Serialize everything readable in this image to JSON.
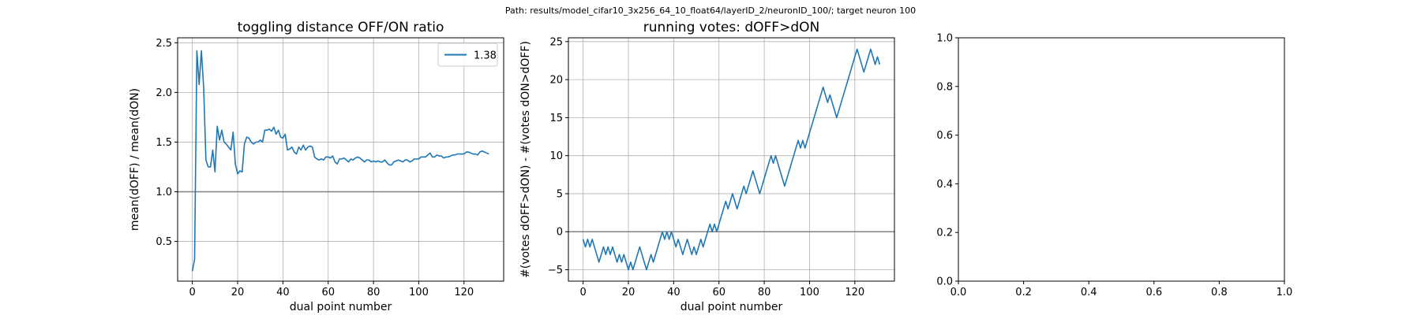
{
  "suptitle": "Path: results/model_cifar10_3x256_64_10_float64/layerID_2/neuronID_100/; target neuron 100",
  "chart_data": [
    {
      "type": "line",
      "title": "toggling distance OFF/ON ratio",
      "xlabel": "dual point number",
      "ylabel": "mean(dOFF) / mean(dON)",
      "xlim": [
        -6.5,
        137.5
      ],
      "ylim": [
        0.1,
        2.55
      ],
      "xticks": [
        0,
        20,
        40,
        60,
        80,
        100,
        120
      ],
      "yticks": [
        0.5,
        1.0,
        1.5,
        2.0,
        2.5
      ],
      "ytick_labels": [
        "0.5",
        "1.0",
        "1.5",
        "2.0",
        "2.5"
      ],
      "grid": true,
      "hline": 1.0,
      "legend": {
        "position": "top-right",
        "entries": [
          "1.38"
        ]
      },
      "series": [
        {
          "name": "1.38",
          "color": "#1f77b4",
          "x": [
            0,
            1,
            2,
            3,
            4,
            5,
            6,
            7,
            8,
            9,
            10,
            11,
            12,
            13,
            14,
            15,
            16,
            17,
            18,
            19,
            20,
            21,
            22,
            23,
            24,
            25,
            26,
            27,
            28,
            29,
            30,
            31,
            32,
            33,
            34,
            35,
            36,
            37,
            38,
            39,
            40,
            41,
            42,
            43,
            44,
            45,
            46,
            47,
            48,
            49,
            50,
            51,
            52,
            53,
            54,
            55,
            56,
            57,
            58,
            59,
            60,
            61,
            62,
            63,
            64,
            65,
            66,
            67,
            68,
            69,
            70,
            71,
            72,
            73,
            74,
            75,
            76,
            77,
            78,
            79,
            80,
            81,
            82,
            83,
            84,
            85,
            86,
            87,
            88,
            89,
            90,
            91,
            92,
            93,
            94,
            95,
            96,
            97,
            98,
            99,
            100,
            101,
            102,
            103,
            104,
            105,
            106,
            107,
            108,
            109,
            110,
            111,
            112,
            113,
            114,
            115,
            116,
            117,
            118,
            119,
            120,
            121,
            122,
            123,
            124,
            125,
            126,
            127,
            128,
            129,
            130,
            131
          ],
          "y": [
            0.2,
            0.32,
            2.42,
            2.08,
            2.42,
            2.05,
            1.32,
            1.25,
            1.25,
            1.42,
            1.2,
            1.66,
            1.52,
            1.62,
            1.5,
            1.48,
            1.45,
            1.42,
            1.6,
            1.28,
            1.18,
            1.21,
            1.2,
            1.48,
            1.55,
            1.54,
            1.5,
            1.48,
            1.5,
            1.5,
            1.52,
            1.5,
            1.62,
            1.62,
            1.63,
            1.61,
            1.65,
            1.58,
            1.62,
            1.55,
            1.54,
            1.58,
            1.42,
            1.43,
            1.45,
            1.4,
            1.38,
            1.45,
            1.42,
            1.47,
            1.42,
            1.45,
            1.46,
            1.45,
            1.35,
            1.33,
            1.32,
            1.33,
            1.32,
            1.35,
            1.35,
            1.34,
            1.36,
            1.3,
            1.28,
            1.33,
            1.33,
            1.34,
            1.32,
            1.3,
            1.33,
            1.32,
            1.34,
            1.35,
            1.34,
            1.32,
            1.3,
            1.32,
            1.32,
            1.3,
            1.31,
            1.3,
            1.31,
            1.3,
            1.3,
            1.32,
            1.29,
            1.27,
            1.27,
            1.3,
            1.31,
            1.32,
            1.31,
            1.3,
            1.32,
            1.32,
            1.3,
            1.31,
            1.33,
            1.33,
            1.33,
            1.35,
            1.35,
            1.35,
            1.37,
            1.39,
            1.35,
            1.35,
            1.37,
            1.36,
            1.36,
            1.34,
            1.35,
            1.35,
            1.36,
            1.37,
            1.37,
            1.38,
            1.38,
            1.38,
            1.38,
            1.4,
            1.4,
            1.39,
            1.38,
            1.38,
            1.37,
            1.4,
            1.41,
            1.4,
            1.39,
            1.38
          ]
        }
      ]
    },
    {
      "type": "line",
      "title": "running votes: dOFF>dON",
      "xlabel": "dual point number",
      "ylabel": "#(votes dOFF>dON) - #(votes dON>dOFF)",
      "xlim": [
        -6.5,
        137.5
      ],
      "ylim": [
        -6.5,
        25.5
      ],
      "xticks": [
        0,
        20,
        40,
        60,
        80,
        100,
        120
      ],
      "yticks": [
        -5,
        0,
        5,
        10,
        15,
        20,
        25
      ],
      "ytick_labels": [
        "−5",
        "0",
        "5",
        "10",
        "15",
        "20",
        "25"
      ],
      "grid": true,
      "hline": 0,
      "series": [
        {
          "color": "#1f77b4",
          "x": [
            0,
            1,
            2,
            3,
            4,
            5,
            6,
            7,
            8,
            9,
            10,
            11,
            12,
            13,
            14,
            15,
            16,
            17,
            18,
            19,
            20,
            21,
            22,
            23,
            24,
            25,
            26,
            27,
            28,
            29,
            30,
            31,
            32,
            33,
            34,
            35,
            36,
            37,
            38,
            39,
            40,
            41,
            42,
            43,
            44,
            45,
            46,
            47,
            48,
            49,
            50,
            51,
            52,
            53,
            54,
            55,
            56,
            57,
            58,
            59,
            60,
            61,
            62,
            63,
            64,
            65,
            66,
            67,
            68,
            69,
            70,
            71,
            72,
            73,
            74,
            75,
            76,
            77,
            78,
            79,
            80,
            81,
            82,
            83,
            84,
            85,
            86,
            87,
            88,
            89,
            90,
            91,
            92,
            93,
            94,
            95,
            96,
            97,
            98,
            99,
            100,
            101,
            102,
            103,
            104,
            105,
            106,
            107,
            108,
            109,
            110,
            111,
            112,
            113,
            114,
            115,
            116,
            117,
            118,
            119,
            120,
            121,
            122,
            123,
            124,
            125,
            126,
            127,
            128,
            129,
            130,
            131
          ],
          "y": [
            -1,
            -2,
            -1,
            -2,
            -1,
            -2,
            -3,
            -4,
            -3,
            -2,
            -3,
            -2,
            -3,
            -2,
            -3,
            -4,
            -3,
            -4,
            -3,
            -4,
            -5,
            -4,
            -5,
            -4,
            -3,
            -2,
            -3,
            -4,
            -5,
            -4,
            -3,
            -4,
            -3,
            -2,
            -1,
            0,
            -1,
            0,
            -1,
            0,
            -1,
            -2,
            -1,
            -2,
            -3,
            -2,
            -1,
            -2,
            -3,
            -2,
            -3,
            -2,
            -1,
            -2,
            -1,
            0,
            1,
            0,
            1,
            0,
            1,
            2,
            3,
            4,
            3,
            4,
            5,
            4,
            3,
            4,
            5,
            6,
            5,
            6,
            7,
            8,
            7,
            6,
            5,
            6,
            7,
            8,
            9,
            10,
            9,
            10,
            9,
            8,
            7,
            6,
            7,
            8,
            9,
            10,
            11,
            12,
            11,
            12,
            11,
            12,
            13,
            14,
            15,
            16,
            17,
            18,
            19,
            18,
            17,
            18,
            17,
            16,
            15,
            16,
            17,
            18,
            19,
            20,
            21,
            22,
            23,
            24,
            23,
            22,
            21,
            22,
            23,
            24,
            23,
            22,
            23,
            22
          ]
        }
      ]
    },
    {
      "type": "line",
      "title": "",
      "xlabel": "",
      "ylabel": "",
      "xlim": [
        0,
        1
      ],
      "ylim": [
        0,
        1
      ],
      "xticks": [
        0.0,
        0.2,
        0.4,
        0.6,
        0.8,
        1.0
      ],
      "xtick_labels": [
        "0.0",
        "0.2",
        "0.4",
        "0.6",
        "0.8",
        "1.0"
      ],
      "yticks": [
        0.0,
        0.2,
        0.4,
        0.6,
        0.8,
        1.0
      ],
      "ytick_labels": [
        "0.0",
        "0.2",
        "0.4",
        "0.6",
        "0.8",
        "1.0"
      ],
      "grid": false,
      "series": []
    }
  ]
}
